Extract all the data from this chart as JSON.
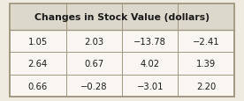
{
  "title": "Changes in Stock Value (dollars)",
  "table_data": [
    [
      "1.05",
      "2.03",
      "−13.78",
      "−2.41"
    ],
    [
      "2.64",
      "0.67",
      "4.02",
      "1.39"
    ],
    [
      "0.66",
      "−0.28",
      "−3.01",
      "2.20"
    ]
  ],
  "n_cols": 4,
  "n_rows": 3,
  "outer_bg": "#f0ebe0",
  "cell_bg": "#faf7f2",
  "title_bg": "#ddd8cc",
  "border_color": "#a09880",
  "text_color": "#1a1a1a",
  "title_fontsize": 7.8,
  "cell_fontsize": 7.2,
  "figwidth": 2.76,
  "figheight": 1.16,
  "dpi": 100
}
